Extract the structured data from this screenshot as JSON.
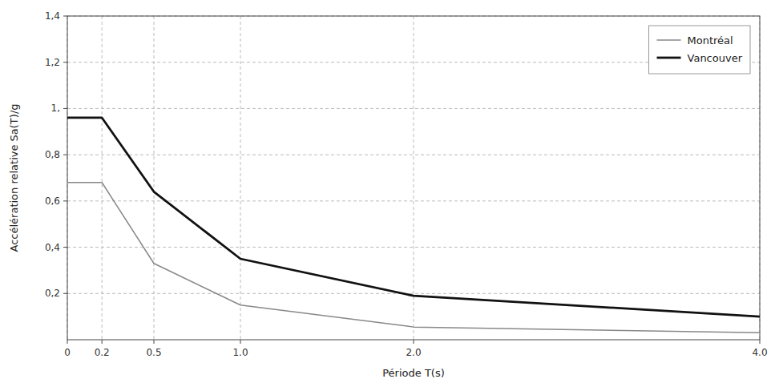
{
  "chart_data": {
    "type": "line",
    "x": [
      0,
      0.2,
      0.5,
      1.0,
      2.0,
      4.0
    ],
    "series": [
      {
        "name": "Montréal",
        "color": "#888888",
        "values": [
          0.68,
          0.68,
          0.33,
          0.15,
          0.055,
          0.03
        ]
      },
      {
        "name": "Vancouver",
        "color": "#111111",
        "values": [
          0.96,
          0.96,
          0.64,
          0.35,
          0.19,
          0.1
        ]
      }
    ],
    "x_label": "Période T(s)",
    "y_label": "Accélération relative Sa(T)/g",
    "xlim": [
      0,
      4.0
    ],
    "ylim": [
      0,
      1.4
    ],
    "xticks": [
      0,
      0.2,
      0.5,
      {
        "value": 1.0,
        "label": "1.0"
      },
      {
        "value": 2.0,
        "label": "2.0"
      },
      {
        "value": 4.0,
        "label": "4.0"
      }
    ],
    "yticks": [
      {
        "value": 0.2,
        "label": "0,2"
      },
      {
        "value": 0.4,
        "label": "0,4"
      },
      {
        "value": 0.6,
        "label": "0,6"
      },
      {
        "value": 0.8,
        "label": "0,8"
      },
      {
        "value": 1.0,
        "label": "1,"
      },
      {
        "value": 1.2,
        "label": "1,2"
      },
      {
        "value": 1.4,
        "label": "1,4"
      }
    ],
    "grid": true,
    "legend": "upper right"
  }
}
